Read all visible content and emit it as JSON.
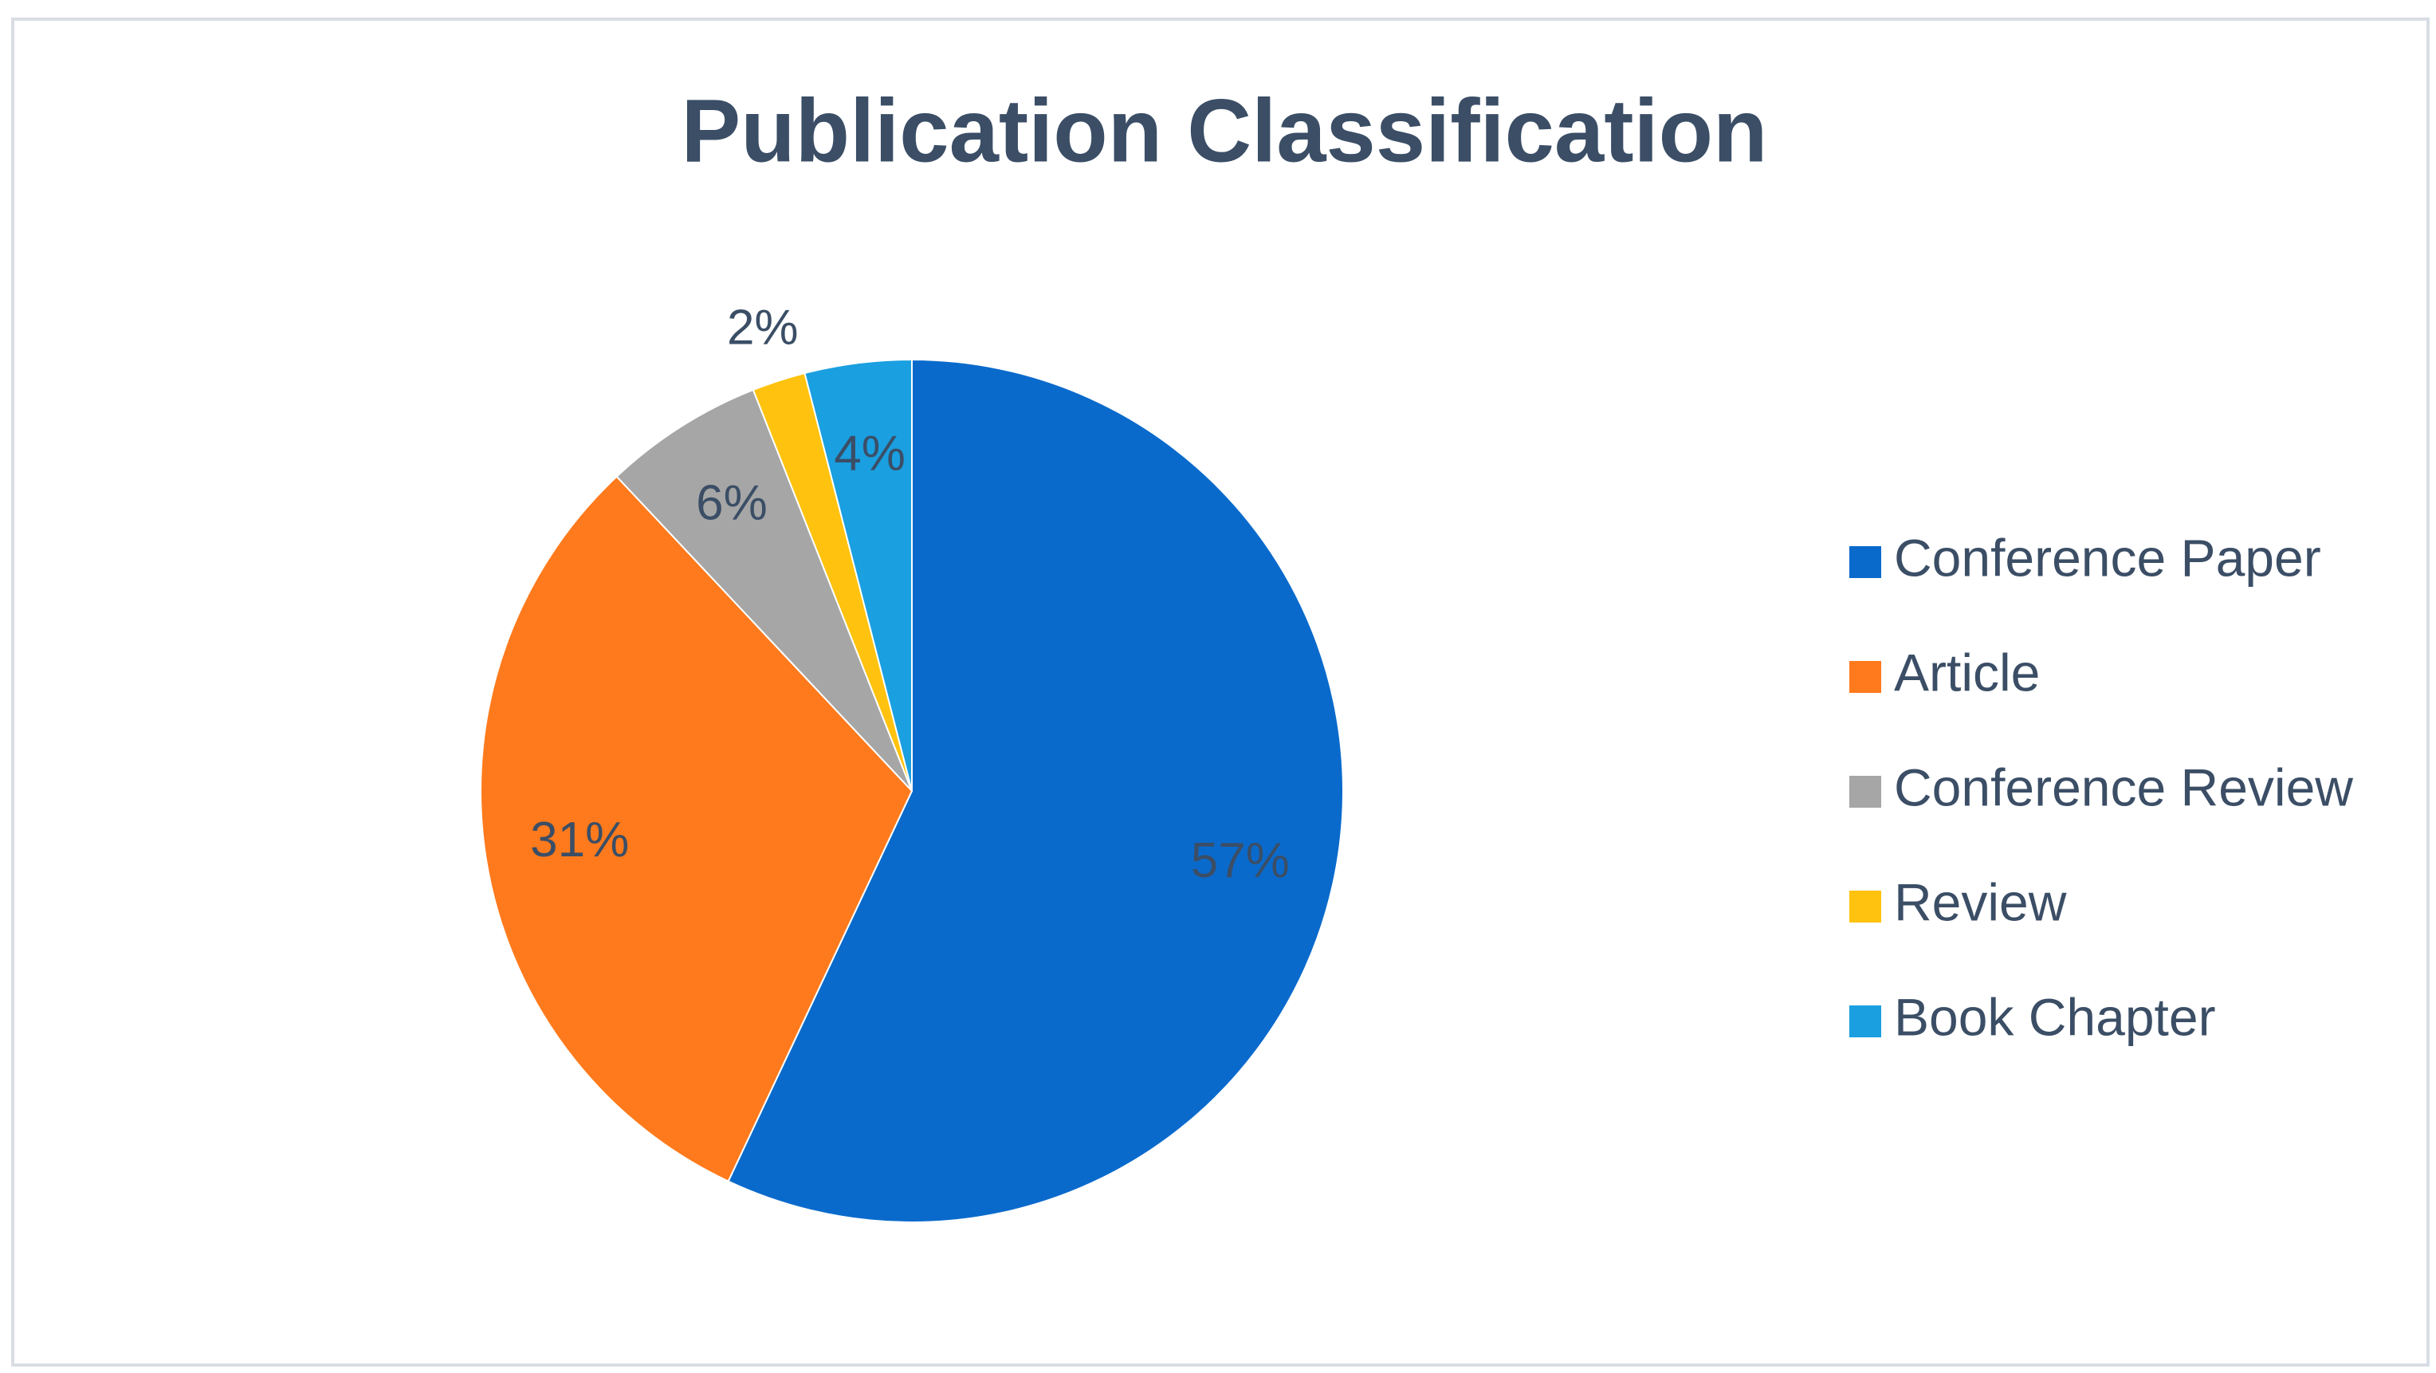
{
  "chart_data": {
    "type": "pie",
    "title": "Publication Classification",
    "categories": [
      "Conference Paper",
      "Article",
      "Conference Review",
      "Review",
      "Book Chapter"
    ],
    "values": [
      57,
      31,
      6,
      2,
      4
    ],
    "colors": [
      "#0a6acc",
      "#ff7a1c",
      "#a6a6a6",
      "#ffc20e",
      "#1a9fe0"
    ],
    "legend": "right"
  }
}
